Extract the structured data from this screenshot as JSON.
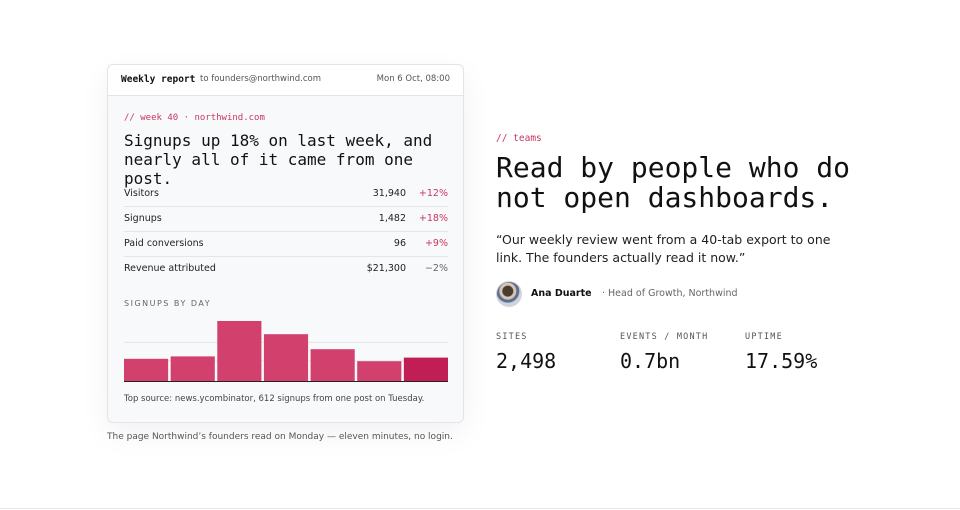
{
  "report_card": {
    "title": "Weekly report",
    "recipient": "to founders@northwind.com",
    "date": "Mon 6 Oct, 08:00",
    "tag": "// week 40 · northwind.com",
    "headline": "Signups up 18% on last week, and nearly all of it came from one post.",
    "metrics": [
      {
        "label": "Visitors",
        "value": "31,940",
        "delta": "+12%"
      },
      {
        "label": "Signups",
        "value": "1,482",
        "delta": "+18%"
      },
      {
        "label": "Paid conversions",
        "value": "96",
        "delta": "+9%"
      },
      {
        "label": "Revenue attributed",
        "value": "$21,300",
        "delta": "−2%"
      }
    ],
    "chart_label": "SIGNUPS BY DAY",
    "footnote": "Top source: news.ycombinator, 612 signups from one post on Tuesday.",
    "colors": {
      "accent": "#c9375f",
      "bar": "#d2406d",
      "bar_highlight": "#c21e56"
    }
  },
  "chart_data": {
    "type": "bar",
    "categories": [
      "",
      "",
      "",
      "",
      "",
      "",
      ""
    ],
    "values": [
      0.37,
      0.41,
      1.0,
      0.78,
      0.53,
      0.33,
      0.39
    ],
    "highlight_index": 6,
    "ylim": [
      0,
      1
    ],
    "grid": true,
    "title": "SIGNUPS BY DAY",
    "xlabel": "",
    "ylabel": ""
  },
  "caption": "The page Northwind’s founders read on Monday — eleven minutes, no login.",
  "section": {
    "tag": "// teams",
    "headline": "Read by people who do not open dashboards.",
    "quote": "“Our weekly review went from a 40-tab export to one link. The founders actually read it now.”",
    "author_name": "Ana Duarte",
    "author_role": "· Head of Growth, Northwind",
    "stats": [
      {
        "label": "SITES",
        "value": "2,498"
      },
      {
        "label": "EVENTS / MONTH",
        "value": "0.7bn"
      },
      {
        "label": "UPTIME",
        "value": "17.59%"
      }
    ]
  }
}
